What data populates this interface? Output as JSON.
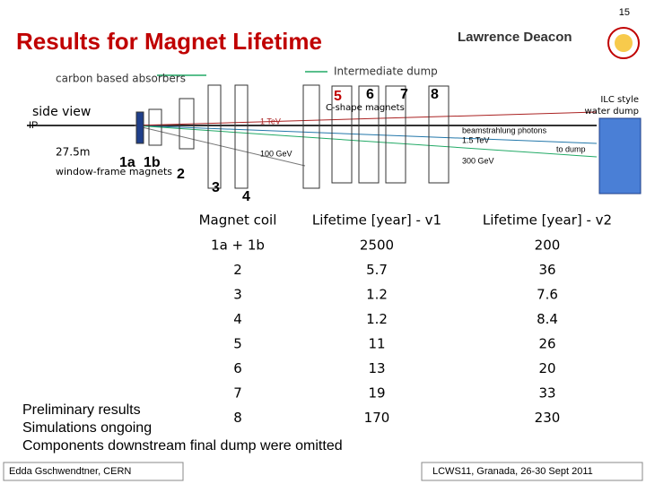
{
  "header": {
    "page_number": "15",
    "title": "Results for Magnet Lifetime",
    "author": "Lawrence Deacon"
  },
  "diagram": {
    "carbon_absorbers": "carbon based absorbers",
    "intermediate_dump": "Intermediate dump",
    "side_view": "side view",
    "length": "27.5m",
    "window_frame": "window-frame magnets",
    "c_shape": "C-shape magnets",
    "water_dump": [
      "ILC style",
      "water dump"
    ],
    "ip": "IP",
    "beams": [
      "1 TeV",
      "100 GeV",
      "1.5 TeV",
      "beamstrahlung photons",
      "to dump",
      "300 GeV"
    ],
    "magnets": [
      "1a",
      "1b",
      "2",
      "3",
      "4",
      "5",
      "6",
      "7",
      "8"
    ]
  },
  "table": {
    "header": [
      "Magnet coil",
      "Lifetime [year] - v1",
      "Lifetime [year] - v2"
    ],
    "rows": [
      [
        "1a + 1b",
        "2500",
        "200"
      ],
      [
        "2",
        "5.7",
        "36"
      ],
      [
        "3",
        "1.2",
        "7.6"
      ],
      [
        "4",
        "1.2",
        "8.4"
      ],
      [
        "5",
        "11",
        "26"
      ],
      [
        "6",
        "13",
        "20"
      ],
      [
        "7",
        "19",
        "33"
      ],
      [
        "8",
        "170",
        "230"
      ]
    ]
  },
  "notes": [
    "Preliminary results",
    "Simulations ongoing",
    "Components downstream final dump were omitted"
  ],
  "footer": {
    "left": "Edda Gschwendtner, CERN",
    "right": "LCWS11, Granada, 26-30 Sept 2011"
  }
}
